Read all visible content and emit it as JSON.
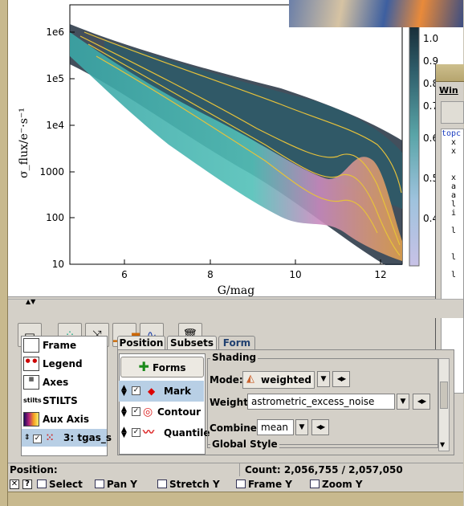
{
  "plot": {
    "x_axis_title": "G/mag",
    "y_axis_title": "σ_flux/e⁻·s⁻¹",
    "x_ticks": [
      "6",
      "8",
      "10",
      "12"
    ],
    "y_ticks": [
      "1e6",
      "1e5",
      "1e4",
      "1000",
      "100",
      "10"
    ],
    "colorbar_ticks": [
      "1.0",
      "0.9",
      "0.8",
      "0.7",
      "0.6",
      "0.5",
      "0.4"
    ],
    "colors": {
      "scatter_dark": "#1a2430",
      "contour": "#e7c23a",
      "shading_teal": "#49b6b0",
      "shading_pink": "#d987b8",
      "shading_orange": "#e39a4a"
    }
  },
  "toolbar": {
    "buttons": [
      {
        "icon": "window-icon"
      },
      {
        "icon": "scatter-add-icon"
      },
      {
        "icon": "pair-link-icon"
      },
      {
        "icon": "histogram-icon"
      },
      {
        "icon": "function-icon"
      },
      {
        "icon": "trash-icon"
      }
    ]
  },
  "layers": {
    "items": [
      {
        "label": "Frame",
        "icon": "frame-icon"
      },
      {
        "label": "Legend",
        "icon": "legend-icon"
      },
      {
        "label": "Axes",
        "icon": "axes-icon"
      },
      {
        "label": "STILTS",
        "icon": "stilts-icon"
      },
      {
        "label": "Aux Axis",
        "icon": "aux-axis-icon"
      },
      {
        "label": "3: tgas_s",
        "icon": "scatter-layer-icon"
      }
    ],
    "stilts_icon_text": "stilts"
  },
  "tabs": {
    "position": "Position",
    "subsets": "Subsets",
    "form": "Form"
  },
  "forms": {
    "button_label": "Forms",
    "items": [
      {
        "label": "Mark",
        "icon": "mark-icon"
      },
      {
        "label": "Contour",
        "icon": "contour-icon"
      },
      {
        "label": "Quantile",
        "icon": "quantile-icon"
      }
    ]
  },
  "shading": {
    "group_title": "Shading",
    "mode_label": "Mode:",
    "mode_value": "weighted",
    "weight_label": "Weight:",
    "weight_value": "astrometric_excess_noise",
    "combine_label": "Combine:",
    "combine_value": "mean",
    "global_style_title": "Global Style"
  },
  "status": {
    "position_label": "Position:",
    "count_text": "Count: 2,056,755 / 2,057,050"
  },
  "hints": {
    "items": [
      "Select",
      "Pan Y",
      "Stretch Y",
      "Frame Y",
      "Zoom Y"
    ]
  },
  "window2": {
    "menu_label": "Win",
    "text_lines": [
      "topc",
      "  x",
      "  x",
      "",
      "",
      "  x",
      "  a",
      "  a",
      "  l",
      "  i",
      "",
      "  l",
      "",
      "",
      "  l",
      "",
      "  l"
    ]
  }
}
